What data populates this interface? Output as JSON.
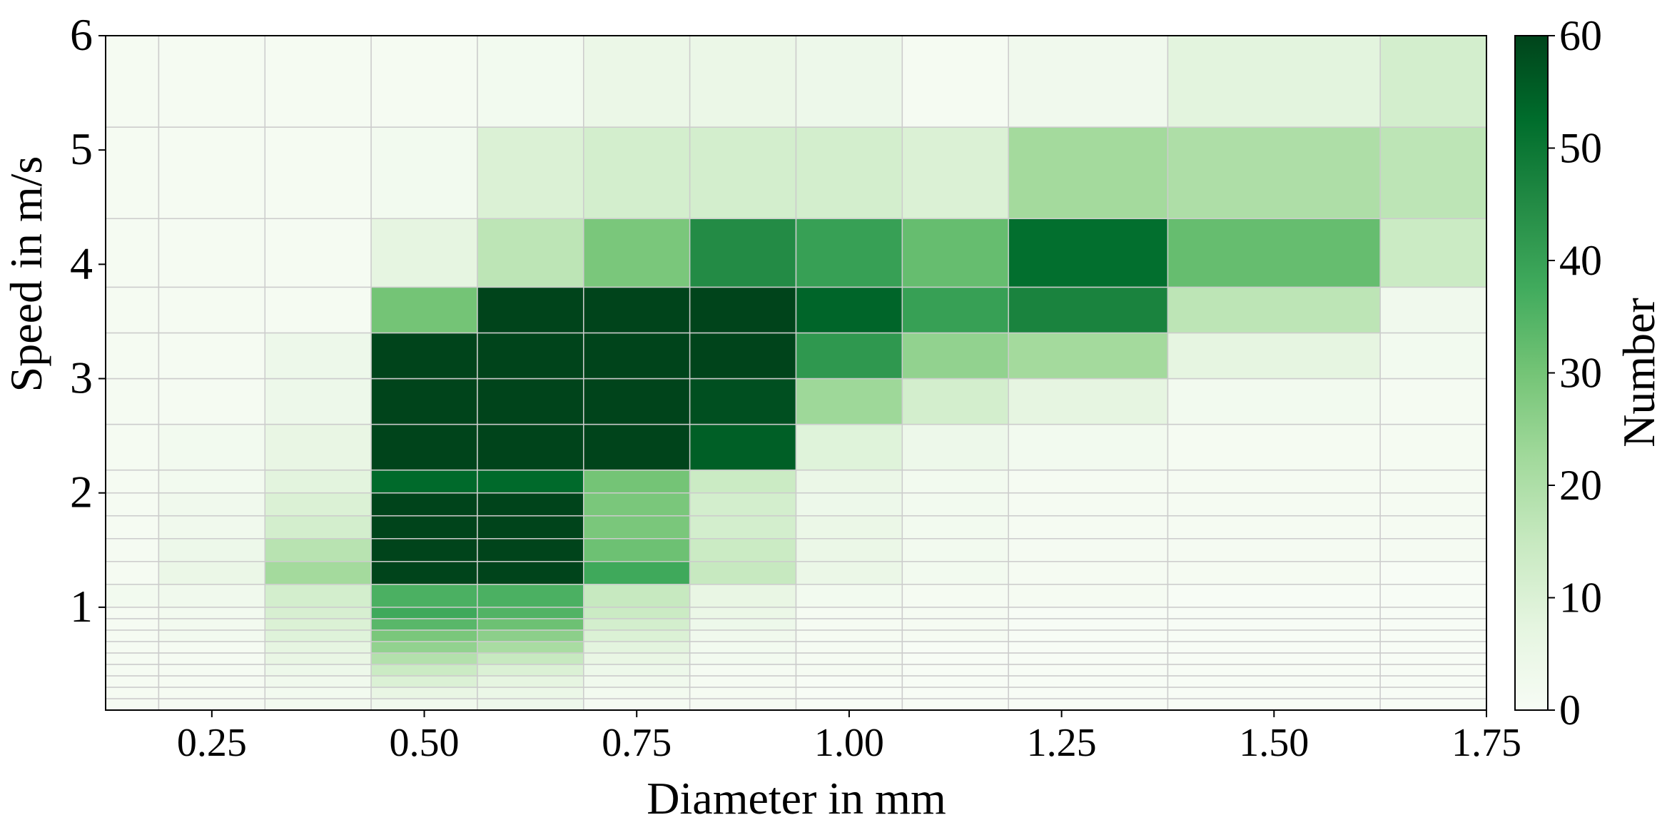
{
  "chart_data": {
    "type": "heatmap",
    "title": "",
    "xlabel": "Diameter in mm",
    "ylabel": "Speed in m/s",
    "colorbar_label": "Number",
    "colormap": "Greens",
    "color_low": "#f7fcf5",
    "color_high": "#00441b",
    "xlim": [
      0.125,
      1.75
    ],
    "ylim": [
      0.1,
      6.0
    ],
    "vlim": [
      0,
      60
    ],
    "x_ticks": [
      0.25,
      0.5,
      0.75,
      1.0,
      1.25,
      1.5,
      1.75
    ],
    "x_tick_labels": [
      "0.25",
      "0.50",
      "0.75",
      "1.00",
      "1.25",
      "1.50",
      "1.75"
    ],
    "y_ticks": [
      1,
      2,
      3,
      4,
      5,
      6
    ],
    "y_tick_labels": [
      "1",
      "2",
      "3",
      "4",
      "5",
      "6"
    ],
    "colorbar_ticks": [
      0,
      10,
      20,
      30,
      40,
      50,
      60
    ],
    "colorbar_tick_labels": [
      "0",
      "10",
      "20",
      "30",
      "40",
      "50",
      "60"
    ],
    "grid": true,
    "x_bins": [
      0.125,
      0.1875,
      0.3125,
      0.4375,
      0.5625,
      0.6875,
      0.8125,
      0.9375,
      1.0625,
      1.1875,
      1.375,
      1.625,
      1.75
    ],
    "y_bins": [
      0.1,
      0.2,
      0.3,
      0.4,
      0.5,
      0.6,
      0.7,
      0.8,
      0.9,
      1.0,
      1.2,
      1.4,
      1.6,
      1.8,
      2.0,
      2.2,
      2.6,
      3.0,
      3.4,
      3.8,
      4.4,
      5.2,
      6.0
    ],
    "values": [
      [
        1,
        1,
        2,
        3,
        4,
        1,
        1,
        0,
        0,
        0,
        0,
        0
      ],
      [
        1,
        1,
        2,
        6,
        5,
        2,
        1,
        0,
        0,
        0,
        0,
        0
      ],
      [
        1,
        1,
        3,
        10,
        7,
        3,
        1,
        0,
        0,
        0,
        0,
        0
      ],
      [
        1,
        1,
        4,
        14,
        10,
        4,
        1,
        1,
        0,
        0,
        0,
        0
      ],
      [
        1,
        1,
        6,
        19,
        15,
        6,
        2,
        1,
        0,
        0,
        0,
        0
      ],
      [
        1,
        1,
        7,
        25,
        21,
        8,
        2,
        1,
        0,
        0,
        0,
        0
      ],
      [
        1,
        2,
        9,
        29,
        26,
        10,
        3,
        1,
        1,
        0,
        0,
        0
      ],
      [
        1,
        2,
        10,
        34,
        31,
        12,
        4,
        1,
        1,
        0,
        0,
        0
      ],
      [
        1,
        2,
        11,
        38,
        35,
        14,
        5,
        1,
        1,
        0,
        0,
        0
      ],
      [
        2,
        3,
        12,
        36,
        36,
        15,
        6,
        2,
        1,
        1,
        0,
        0
      ],
      [
        1,
        5,
        22,
        60,
        60,
        38,
        15,
        5,
        2,
        1,
        1,
        0
      ],
      [
        1,
        4,
        18,
        60,
        60,
        31,
        14,
        5,
        2,
        1,
        1,
        1
      ],
      [
        1,
        3,
        12,
        60,
        60,
        29,
        12,
        5,
        2,
        1,
        1,
        1
      ],
      [
        1,
        3,
        10,
        60,
        60,
        29,
        12,
        4,
        2,
        1,
        1,
        1
      ],
      [
        1,
        2,
        8,
        53,
        53,
        30,
        14,
        5,
        2,
        1,
        1,
        1
      ],
      [
        1,
        2,
        6,
        60,
        60,
        60,
        55,
        9,
        4,
        2,
        1,
        1
      ],
      [
        1,
        1,
        4,
        60,
        60,
        60,
        58,
        23,
        12,
        7,
        2,
        1
      ],
      [
        1,
        1,
        4,
        60,
        60,
        60,
        60,
        42,
        25,
        22,
        7,
        2
      ],
      [
        1,
        1,
        1,
        30,
        60,
        60,
        60,
        54,
        40,
        47,
        17,
        3
      ],
      [
        1,
        1,
        1,
        7,
        17,
        29,
        45,
        40,
        32,
        52,
        32,
        14
      ],
      [
        1,
        1,
        1,
        2,
        10,
        12,
        12,
        12,
        10,
        22,
        20,
        17
      ],
      [
        1,
        1,
        1,
        1,
        2,
        5,
        5,
        4,
        1,
        3,
        8,
        12
      ]
    ]
  }
}
